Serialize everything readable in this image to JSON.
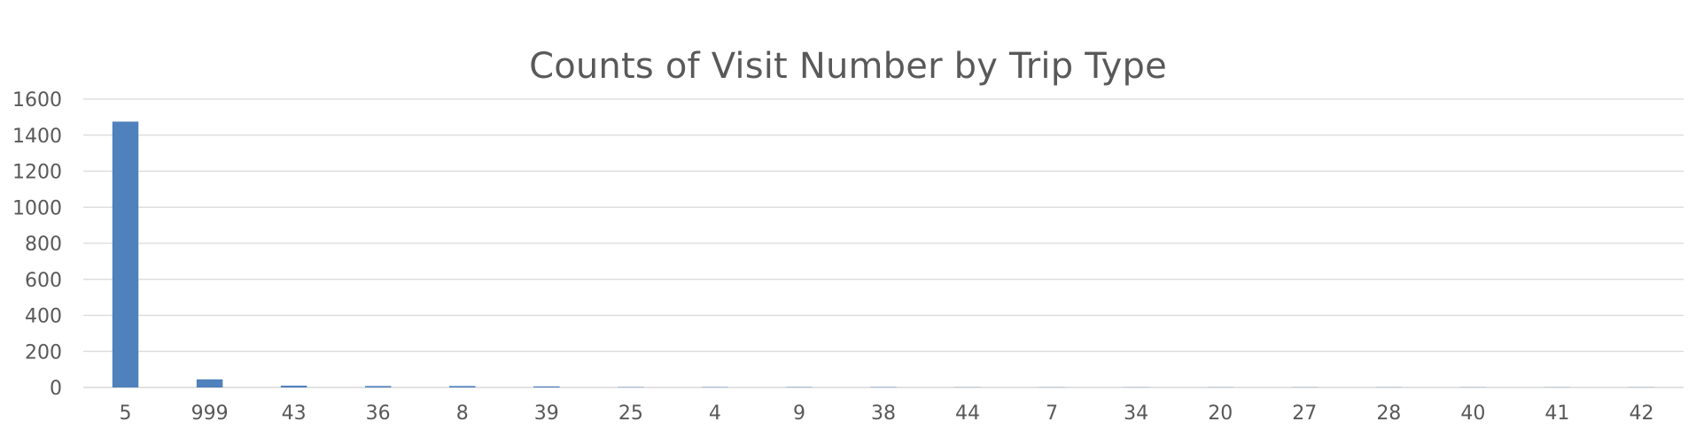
{
  "chart_data": {
    "type": "bar",
    "title": "Counts of Visit Number by Trip Type",
    "xlabel": "",
    "ylabel": "",
    "categories": [
      "5",
      "999",
      "43",
      "36",
      "8",
      "39",
      "25",
      "4",
      "9",
      "38",
      "44",
      "7",
      "34",
      "20",
      "27",
      "28",
      "40",
      "41",
      "42"
    ],
    "values": [
      1475,
      45,
      10,
      8,
      8,
      6,
      2,
      2,
      2,
      2,
      1,
      1,
      1,
      1,
      1,
      1,
      1,
      1,
      1
    ],
    "ylim": [
      0,
      1600
    ],
    "yticks": [
      "0",
      "200",
      "400",
      "600",
      "800",
      "1000",
      "1200",
      "1400",
      "1600"
    ],
    "grid": true,
    "legend": "none",
    "colors": {
      "bar": "#4f81bd",
      "grid": "#d9d9d9",
      "text": "#595959"
    }
  }
}
